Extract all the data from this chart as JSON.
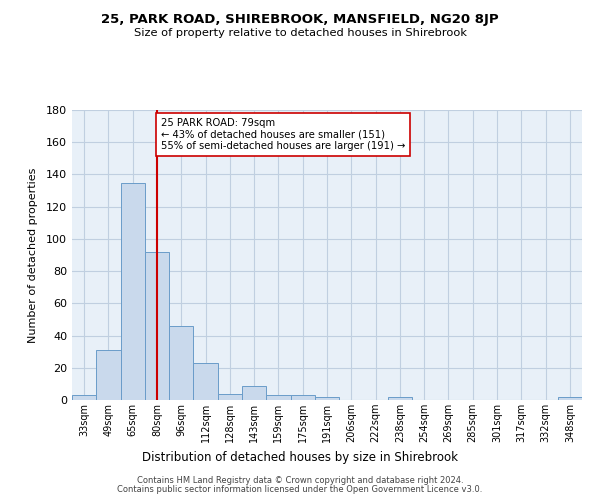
{
  "title": "25, PARK ROAD, SHIREBROOK, MANSFIELD, NG20 8JP",
  "subtitle": "Size of property relative to detached houses in Shirebrook",
  "xlabel": "Distribution of detached houses by size in Shirebrook",
  "ylabel": "Number of detached properties",
  "bin_labels": [
    "33sqm",
    "49sqm",
    "65sqm",
    "80sqm",
    "96sqm",
    "112sqm",
    "128sqm",
    "143sqm",
    "159sqm",
    "175sqm",
    "191sqm",
    "206sqm",
    "222sqm",
    "238sqm",
    "254sqm",
    "269sqm",
    "285sqm",
    "301sqm",
    "317sqm",
    "332sqm",
    "348sqm"
  ],
  "bar_heights": [
    3,
    31,
    135,
    92,
    46,
    23,
    4,
    9,
    3,
    3,
    2,
    0,
    0,
    2,
    0,
    0,
    0,
    0,
    0,
    0,
    2
  ],
  "bar_color": "#c9d9ec",
  "bar_edge_color": "#6a9cc9",
  "vline_x_index": 3,
  "vline_color": "#cc0000",
  "ylim": [
    0,
    180
  ],
  "yticks": [
    0,
    20,
    40,
    60,
    80,
    100,
    120,
    140,
    160,
    180
  ],
  "annotation_text": "25 PARK ROAD: 79sqm\n← 43% of detached houses are smaller (151)\n55% of semi-detached houses are larger (191) →",
  "annotation_box_color": "#ffffff",
  "annotation_box_edge": "#cc0000",
  "footnote1": "Contains HM Land Registry data © Crown copyright and database right 2024.",
  "footnote2": "Contains public sector information licensed under the Open Government Licence v3.0.",
  "bg_color": "#ffffff",
  "plot_bg_color": "#e8f0f8",
  "grid_color": "#c0cfe0"
}
